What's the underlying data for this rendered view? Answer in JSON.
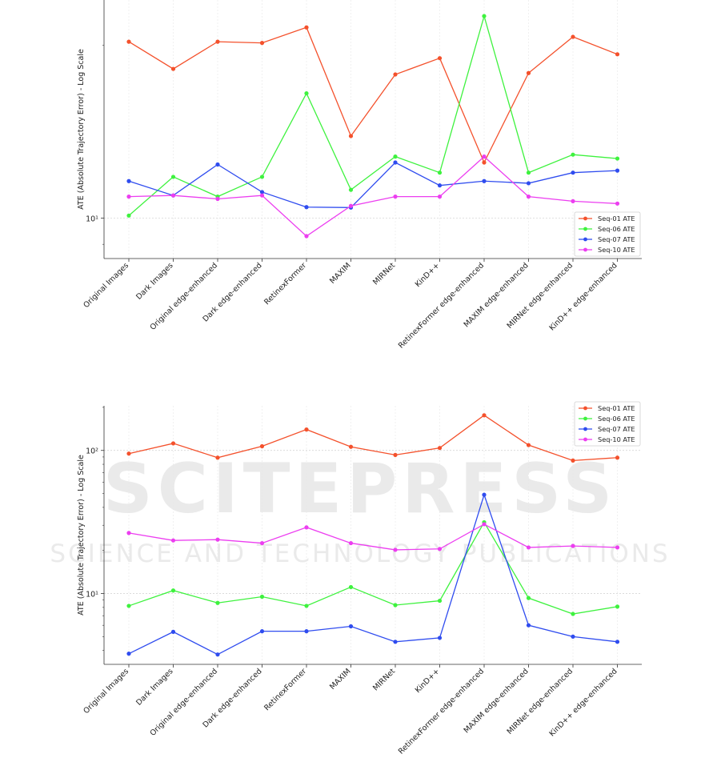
{
  "watermark": {
    "main": "SCITEPRESS",
    "sub": "SCIENCE AND TECHNOLOGY PUBLICATIONS"
  },
  "colors": {
    "Seq-01 ATE": "#f4512c",
    "Seq-06 ATE": "#3ef23e",
    "Seq-07 ATE": "#2f4cef",
    "Seq-10 ATE": "#ec3ef0"
  },
  "chart_data": [
    {
      "type": "line",
      "title": "",
      "xlabel": "",
      "ylabel": "ATE (Absolute Trajectory Error) - Log Scale",
      "yscale": "log",
      "ylim": [
        8.5,
        24
      ],
      "yticks": [
        {
          "value": 10,
          "label": "10¹"
        }
      ],
      "grid": true,
      "legend_position": "lower right",
      "categories": [
        "Original Images",
        "Dark Images",
        "Original edge-enhanced",
        "Dark edge-enhanced",
        "RetinexFormer",
        "MAXIM",
        "MIRNet",
        "KinD++",
        "RetinexFormer edge-enhanced",
        "MAXIM edge-enhanced",
        "MIRNet edge-enhanced",
        "KinD++ edge-enhanced"
      ],
      "series": [
        {
          "name": "Seq-01 ATE",
          "values": [
            20.3,
            18.2,
            20.3,
            20.2,
            21.5,
            13.9,
            17.8,
            19.0,
            12.5,
            17.9,
            20.7,
            19.3
          ]
        },
        {
          "name": "Seq-06 ATE",
          "values": [
            10.1,
            11.8,
            10.9,
            11.8,
            16.5,
            11.2,
            12.8,
            12.0,
            22.5,
            12.0,
            12.9,
            12.7
          ]
        },
        {
          "name": "Seq-07 ATE",
          "values": [
            11.6,
            10.95,
            12.4,
            11.1,
            10.45,
            10.43,
            12.5,
            11.4,
            11.6,
            11.5,
            12.0,
            12.1
          ]
        },
        {
          "name": "Seq-10 ATE",
          "values": [
            10.9,
            10.95,
            10.8,
            10.95,
            9.3,
            10.5,
            10.9,
            10.9,
            12.8,
            10.9,
            10.7,
            10.6
          ]
        }
      ]
    },
    {
      "type": "line",
      "title": "",
      "xlabel": "",
      "ylabel": "ATE (Absolute Trajectory Error) - Log Scale",
      "yscale": "log",
      "ylim": [
        3.2,
        205
      ],
      "yticks": [
        {
          "value": 10,
          "label": "10¹"
        },
        {
          "value": 100,
          "label": "10²"
        }
      ],
      "grid": true,
      "legend_position": "upper right",
      "categories": [
        "Original Images",
        "Dark Images",
        "Original edge-enhanced",
        "Dark edge-enhanced",
        "RetinexFormer",
        "MAXIM",
        "MIRNet",
        "KinD++",
        "RetinexFormer edge-enhanced",
        "MAXIM edge-enhanced",
        "MIRNet edge-enhanced",
        "KinD++ edge-enhanced"
      ],
      "series": [
        {
          "name": "Seq-01 ATE",
          "values": [
            95,
            112,
            89,
            107,
            140,
            106,
            93,
            104,
            176,
            109,
            85,
            89
          ]
        },
        {
          "name": "Seq-06 ATE",
          "values": [
            8.2,
            10.5,
            8.6,
            9.5,
            8.2,
            11.1,
            8.3,
            8.9,
            31.5,
            9.3,
            7.2,
            8.1
          ]
        },
        {
          "name": "Seq-07 ATE",
          "values": [
            3.8,
            5.4,
            3.75,
            5.45,
            5.45,
            5.9,
            4.6,
            4.9,
            49,
            6.0,
            5.0,
            4.6
          ]
        },
        {
          "name": "Seq-10 ATE",
          "values": [
            26.5,
            23.5,
            23.8,
            22.5,
            29,
            22.5,
            20.2,
            20.5,
            30.5,
            21,
            21.5,
            21
          ]
        }
      ]
    }
  ]
}
